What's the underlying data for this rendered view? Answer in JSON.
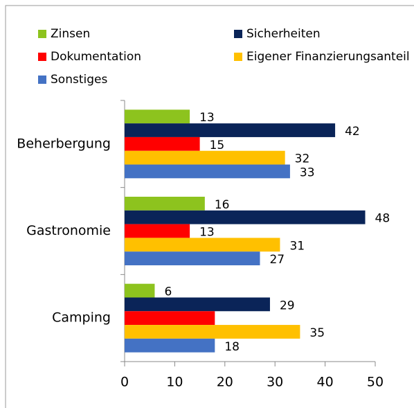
{
  "chart_data": {
    "type": "bar",
    "orientation": "horizontal",
    "categories": [
      "Beherbergung",
      "Gastronomie",
      "Camping"
    ],
    "series": [
      {
        "name": "Zinsen",
        "color": "#8dc31e",
        "values": [
          13,
          16,
          6
        ]
      },
      {
        "name": "Sicherheiten",
        "color": "#0a2458",
        "values": [
          42,
          48,
          29
        ]
      },
      {
        "name": "Dokumentation",
        "color": "#ff0000",
        "values": [
          15,
          13,
          18
        ],
        "value_labels": [
          "15",
          "13",
          null
        ]
      },
      {
        "name": "Eigener Finanzierungsanteil",
        "color": "#ffc000",
        "values": [
          32,
          31,
          35
        ]
      },
      {
        "name": "Sonstiges",
        "color": "#4472c4",
        "values": [
          33,
          27,
          18
        ]
      }
    ],
    "xlim": [
      0,
      50
    ],
    "xticks": [
      0,
      10,
      20,
      30,
      40,
      50
    ],
    "grid": false
  }
}
